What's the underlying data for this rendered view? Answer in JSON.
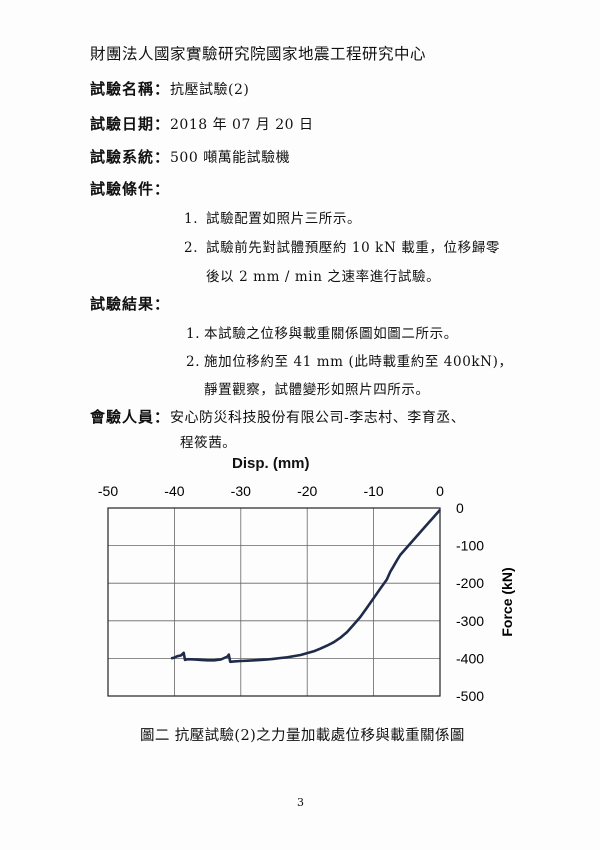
{
  "header": {
    "organization": "財團法人國家實驗研究院國家地震工程研究中心"
  },
  "test_name": {
    "label": "試驗名稱：",
    "value": "抗壓試驗(2)"
  },
  "test_date": {
    "label": "試驗日期：",
    "value": "2018 年 07 月 20 日"
  },
  "test_system": {
    "label": "試驗系統：",
    "value": "500 噸萬能試驗機"
  },
  "test_conditions": {
    "label": "試驗條件：",
    "items": [
      {
        "num": "1.",
        "text": "試驗配置如照片三所示。"
      },
      {
        "num": "2.",
        "text": "試驗前先對試體預壓約 10 kN 載重，位移歸零"
      },
      {
        "num": "",
        "text": "後以 2 mm / min 之速率進行試驗。"
      }
    ]
  },
  "test_results": {
    "label": "試驗結果：",
    "items": [
      {
        "num": "1.",
        "text": "本試驗之位移與載重關係圖如圖二所示。"
      },
      {
        "num": "2.",
        "text": "施加位移約至 41 mm (此時載重約至 400kN)，"
      },
      {
        "num": "",
        "text": "靜置觀察，試體變形如照片四所示。"
      }
    ]
  },
  "witnesses": {
    "label": "會驗人員：",
    "line1": "安心防災科技股份有限公司-李志村、李育丞、",
    "line2": "程筱茜。"
  },
  "chart_data": {
    "type": "line",
    "title": "",
    "xlabel": "Disp. (mm)",
    "ylabel": "Force (kN)",
    "xlim": [
      -50,
      0
    ],
    "ylim": [
      -500,
      0
    ],
    "x_axis_position": "top",
    "y_axis_position": "right",
    "grid": true,
    "xticks": [
      "-50",
      "-40",
      "-30",
      "-20",
      "-10",
      "0"
    ],
    "yticks": [
      "0",
      "-100",
      "-200",
      "-300",
      "-400",
      "-500"
    ],
    "series_color": "#1e2b4a",
    "series": [
      {
        "x": [
          0,
          -0.5,
          -1,
          -2,
          -3,
          -4,
          -5,
          -6,
          -6.5,
          -7,
          -7.5,
          -8,
          -9,
          -10,
          -11,
          -12,
          -13,
          -14,
          -15,
          -16,
          -17,
          -18,
          -19,
          -20,
          -21,
          -22,
          -23,
          -24,
          -25,
          -26,
          -27,
          -28,
          -29,
          -30,
          -31,
          -31.6,
          -31.8,
          -32,
          -33,
          -34,
          -35,
          -36,
          -37,
          -38,
          -38.4,
          -38.6,
          -39,
          -39.5,
          -40,
          -40.5
        ],
        "y": [
          -5,
          -15,
          -25,
          -45,
          -65,
          -85,
          -105,
          -125,
          -140,
          -155,
          -170,
          -190,
          -215,
          -240,
          -265,
          -290,
          -310,
          -330,
          -345,
          -357,
          -366,
          -374,
          -381,
          -386,
          -391,
          -394,
          -397,
          -399,
          -401,
          -403,
          -404,
          -405,
          -406,
          -407,
          -408,
          -409,
          -390,
          -395,
          -403,
          -405,
          -405,
          -404,
          -403,
          -402,
          -404,
          -385,
          -392,
          -394,
          -398,
          -400
        ]
      }
    ],
    "caption": "圖二 抗壓試驗(2)之力量加載處位移與載重關係圖"
  },
  "page_number": "3"
}
